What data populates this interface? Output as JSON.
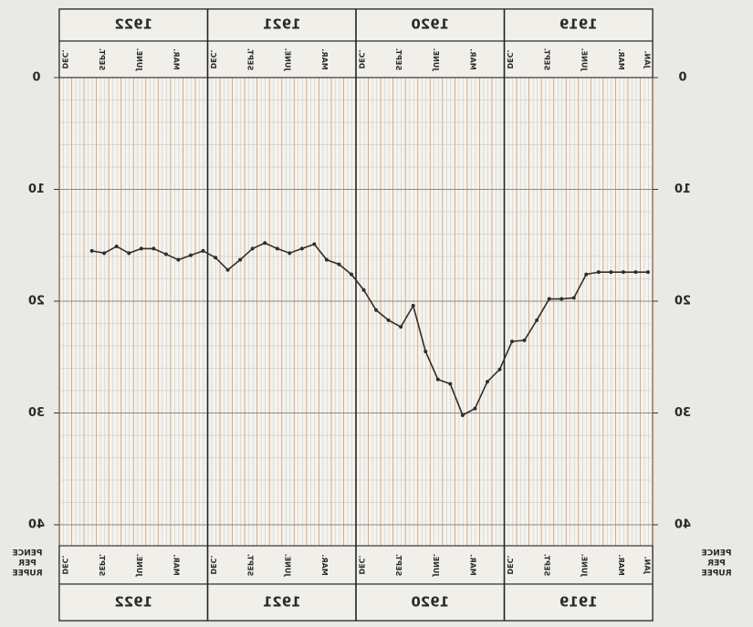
{
  "chart_data": {
    "type": "line",
    "year_labels": [
      "1922",
      "1921",
      "1920",
      "1919"
    ],
    "month_labels": [
      "DEC.",
      "SEPT.",
      "JUNE.",
      "MAR."
    ],
    "first_month_label": "JAN.",
    "y_label": [
      "PENCE",
      "PER",
      "RUPEE"
    ],
    "ylim": [
      0,
      40
    ],
    "yticks": [
      0,
      10,
      20,
      30,
      40
    ],
    "y_inverted": true,
    "mirrored_text": true,
    "grid": true,
    "color": "#2e2e2e",
    "values": [
      17.4,
      17.4,
      17.4,
      17.4,
      17.4,
      17.6,
      19.7,
      19.8,
      19.8,
      21.7,
      23.5,
      23.6,
      26.1,
      27.2,
      29.6,
      30.2,
      27.4,
      27.0,
      24.5,
      20.4,
      22.3,
      21.7,
      20.8,
      19.0,
      17.6,
      16.7,
      16.3,
      14.9,
      15.3,
      15.7,
      15.3,
      14.8,
      15.3,
      16.3,
      17.2,
      16.1,
      15.5,
      15.9,
      16.3,
      15.8,
      15.3,
      15.3,
      15.7,
      15.1,
      15.7,
      15.5
    ]
  }
}
